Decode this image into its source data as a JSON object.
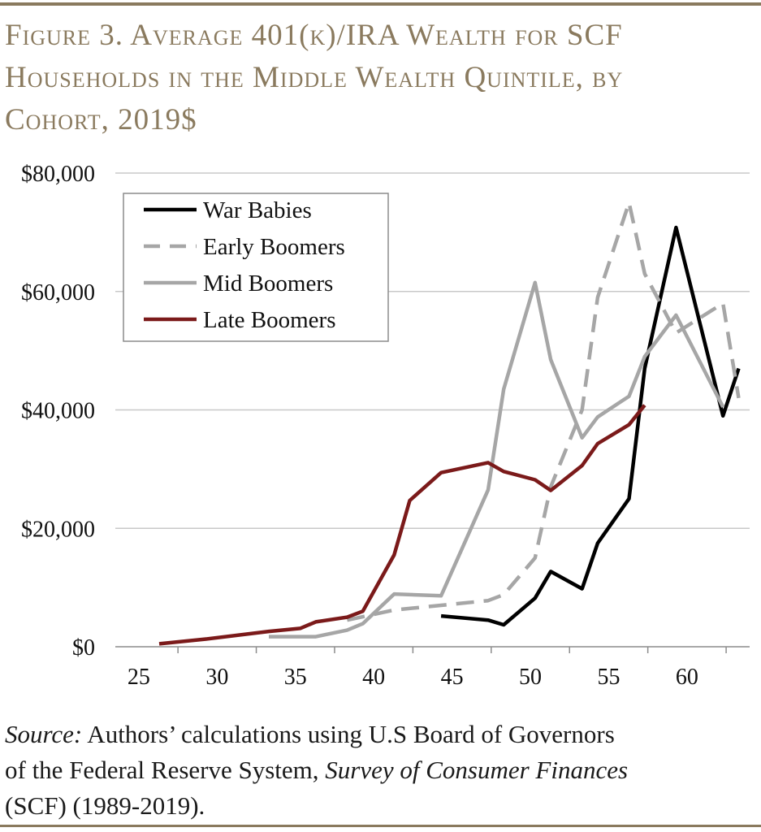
{
  "title_lines": [
    "Figure 3. Average 401(k)/IRA Wealth for SCF",
    "Households in the Middle Wealth Quintile, by",
    "Cohort, 2019$"
  ],
  "colors": {
    "frame": "#8a7a5e",
    "grid": "#c8c8c8",
    "axis": "#8c8c8c"
  },
  "chart_data": {
    "type": "line",
    "title": "Average 401(k)/IRA Wealth for SCF Households in the Middle Wealth Quintile, by Cohort, 2019$",
    "xlabel": "",
    "ylabel": "",
    "xlim": [
      23.5,
      64
    ],
    "ylim": [
      0,
      80000
    ],
    "x_ticks": [
      25,
      30,
      35,
      40,
      45,
      50,
      55,
      60
    ],
    "y_ticks": [
      0,
      20000,
      40000,
      60000,
      80000
    ],
    "y_tick_labels": [
      "$0",
      "$20,000",
      "$40,000",
      "$60,000",
      "$80,000"
    ],
    "grid": true,
    "legend_position": "top-left",
    "series": [
      {
        "name": "War Babies",
        "color": "#000000",
        "dash": "solid",
        "x": [
          44.3,
          47.3,
          48.3,
          50.3,
          51.3,
          53.3,
          54.3,
          56.3,
          57.3,
          59.3,
          62.3,
          63.3
        ],
        "y": [
          5200,
          4500,
          3700,
          8200,
          12700,
          9800,
          17500,
          25000,
          47000,
          70800,
          39000,
          47000
        ]
      },
      {
        "name": "Early Boomers",
        "color": "#a6a6a6",
        "dash": "dashed",
        "x": [
          38.3,
          41.3,
          44.3,
          47.3,
          48.3,
          50.3,
          51.3,
          53.3,
          54.3,
          56.3,
          57.3,
          59.3,
          62.3,
          63.3
        ],
        "y": [
          4500,
          6200,
          7000,
          7800,
          8800,
          15000,
          27000,
          40000,
          59000,
          75000,
          63000,
          53000,
          58000,
          42000
        ]
      },
      {
        "name": "Mid Boomers",
        "color": "#a6a6a6",
        "dash": "solid",
        "x": [
          33.3,
          36.3,
          38.3,
          39.3,
          41.3,
          44.3,
          47.3,
          48.3,
          50.3,
          51.3,
          53.3,
          54.3,
          56.3,
          57.3,
          59.3,
          62.3
        ],
        "y": [
          1700,
          1700,
          2800,
          3900,
          8900,
          8600,
          26500,
          43500,
          61500,
          48500,
          35300,
          38800,
          42300,
          49000,
          56000,
          40500
        ]
      },
      {
        "name": "Late Boomers",
        "color": "#7b1a1a",
        "dash": "solid",
        "x": [
          26.3,
          29.3,
          33.3,
          35.3,
          36.3,
          38.3,
          39.3,
          41.3,
          42.3,
          44.3,
          47.3,
          48.3,
          50.3,
          51.3,
          53.3,
          54.3,
          56.3,
          57.3
        ],
        "y": [
          500,
          1300,
          2600,
          3100,
          4200,
          5000,
          6000,
          15500,
          24700,
          29400,
          31100,
          29600,
          28200,
          26400,
          30600,
          34300,
          37500,
          40800
        ]
      }
    ]
  },
  "source": {
    "label": "Source:",
    "text_1": " Authors’ calculations using U.S Board of Governors",
    "text_2": "of the Federal Reserve System, ",
    "survey": "Survey of Consumer Finances",
    "text_3": "(SCF) (1989-2019)."
  }
}
